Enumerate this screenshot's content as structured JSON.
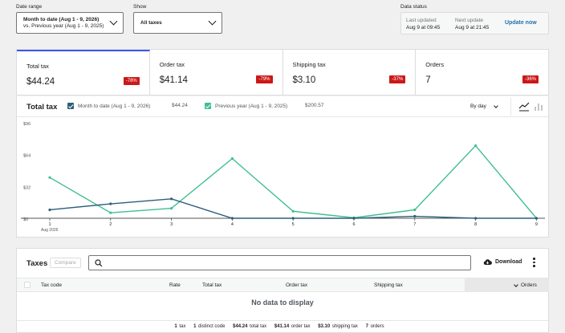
{
  "filters": {
    "date_range_label": "Date range",
    "date_range_line1": "Month to date (Aug 1 - 9, 2026)",
    "date_range_line2": "vs. Previous year (Aug 1 - 9, 2025)",
    "show_label": "Show",
    "show_value": "All taxes"
  },
  "data_status": {
    "label": "Data status",
    "last_updated_label": "Last updated",
    "last_updated_value": "Aug 9 at 09:45",
    "next_update_label": "Next update",
    "next_update_value": "Aug 9 at 21:45",
    "update_now": "Update now"
  },
  "summary": [
    {
      "label": "Total tax",
      "value": "$44.24",
      "delta": "-78%"
    },
    {
      "label": "Order tax",
      "value": "$41.14",
      "delta": "-79%"
    },
    {
      "label": "Shipping tax",
      "value": "$3.10",
      "delta": "-37%"
    },
    {
      "label": "Orders",
      "value": "7",
      "delta": "-36%"
    }
  ],
  "chart_header": {
    "title": "Total tax",
    "current_label": "Month to date (Aug 1 - 9, 2026)",
    "current_amount": "$44.24",
    "previous_label": "Previous year (Aug 1 - 9, 2025)",
    "previous_amount": "$200.57",
    "interval": "By day"
  },
  "chart_data": {
    "type": "line",
    "x": [
      "1",
      "2",
      "3",
      "4",
      "5",
      "6",
      "7",
      "8",
      "9"
    ],
    "x_sublabel": "Aug 2026",
    "yticks": [
      "$0",
      "$32",
      "$64",
      "$96"
    ],
    "ylim": [
      0,
      96
    ],
    "grid": false,
    "series": [
      {
        "name": "Month to date (Aug 1 - 9, 2026)",
        "color": "#2c5f7c",
        "values": [
          8.5,
          14.5,
          19.5,
          0,
          0,
          0,
          2,
          0,
          0
        ]
      },
      {
        "name": "Previous year (Aug 1 - 9, 2025)",
        "color": "#3fbf8f",
        "values": [
          41,
          5.5,
          10,
          60,
          7,
          0.5,
          8.5,
          73,
          0
        ]
      }
    ]
  },
  "table": {
    "title": "Taxes",
    "compare": "Compare",
    "download": "Download",
    "columns": [
      "Tax code",
      "Rate",
      "Total tax",
      "Order tax",
      "Shipping tax",
      "Orders"
    ],
    "empty": "No data to display",
    "footer": [
      {
        "num": "1",
        "text": "tax"
      },
      {
        "num": "1",
        "text": "distinct code"
      },
      {
        "num": "$44.24",
        "text": "total tax"
      },
      {
        "num": "$41.14",
        "text": "order tax"
      },
      {
        "num": "$3.10",
        "text": "shipping tax"
      },
      {
        "num": "7",
        "text": "orders"
      }
    ]
  }
}
